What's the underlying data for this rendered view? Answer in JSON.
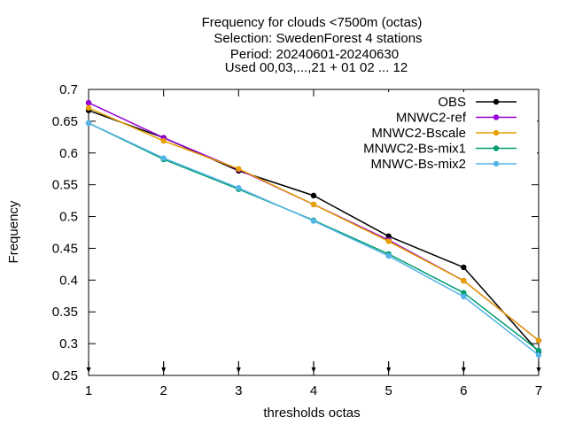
{
  "chart_data": {
    "type": "line",
    "title_lines": [
      "Frequency  for clouds <7500m (octas)",
      "Selection: SwedenForest       4 stations",
      "Period: 20240601-20240630",
      "Used 00,03,...,21 + 01 02 ... 12"
    ],
    "xlabel": "thresholds octas",
    "ylabel": "Frequency",
    "x": [
      1,
      2,
      3,
      4,
      5,
      6,
      7
    ],
    "xlim": [
      1,
      7
    ],
    "ylim": [
      0.25,
      0.7
    ],
    "xticks": [
      "1",
      "2",
      "3",
      "4",
      "5",
      "6",
      "7"
    ],
    "yticks": [
      "0.25",
      "0.3",
      "0.35",
      "0.4",
      "0.45",
      "0.5",
      "0.55",
      "0.6",
      "0.65",
      "0.7"
    ],
    "grid": false,
    "legend_position": "top-right",
    "series": [
      {
        "name": "OBS",
        "color": "#000000",
        "values": [
          0.667,
          0.624,
          0.572,
          0.533,
          0.469,
          0.42,
          0.287
        ]
      },
      {
        "name": "MNWC2-ref",
        "color": "#9400d3",
        "values": [
          0.679,
          0.624,
          0.574,
          0.519,
          0.463,
          0.399,
          0.305
        ]
      },
      {
        "name": "MNWC2-Bscale",
        "color": "#e69f00",
        "values": [
          0.671,
          0.619,
          0.575,
          0.519,
          0.461,
          0.399,
          0.305
        ]
      },
      {
        "name": "MNWC2-Bs-mix1",
        "color": "#009e73",
        "values": [
          0.647,
          0.59,
          0.543,
          0.494,
          0.441,
          0.38,
          0.289
        ]
      },
      {
        "name": "MNWC-Bs-mix2",
        "color": "#56b4e9",
        "values": [
          0.647,
          0.592,
          0.545,
          0.493,
          0.438,
          0.374,
          0.282
        ]
      }
    ]
  }
}
